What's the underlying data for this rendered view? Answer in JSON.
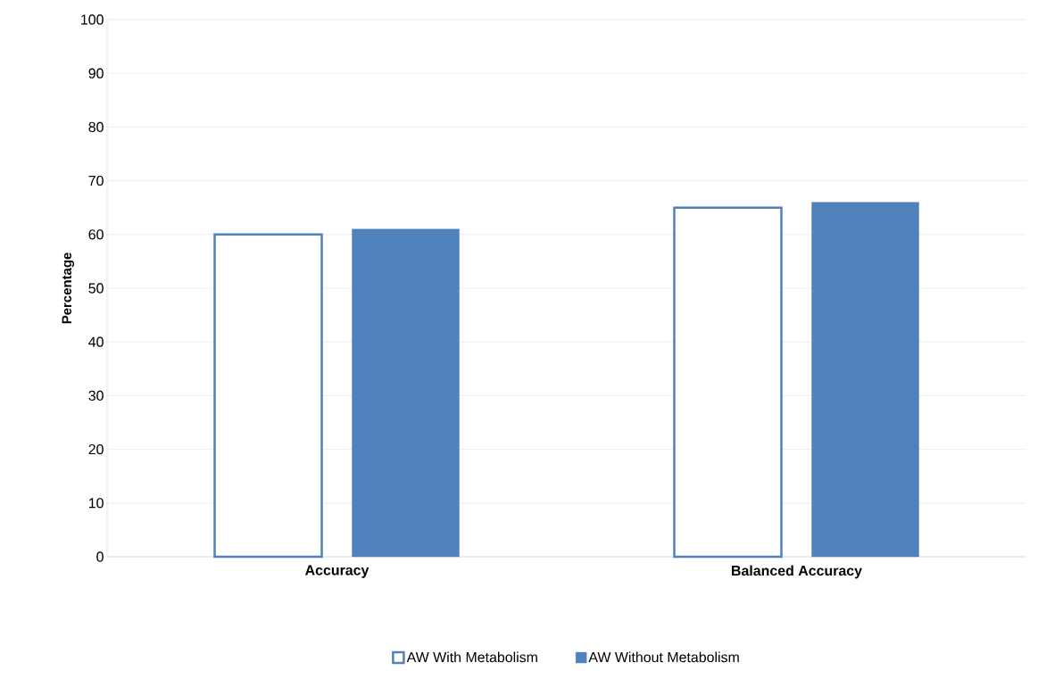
{
  "chart_data": {
    "type": "bar",
    "ylabel": "Percentage",
    "categories": [
      "Accuracy",
      "Balanced Accuracy"
    ],
    "series": [
      {
        "name": "AW With Metabolism",
        "color": "#4f81bd",
        "values": [
          60,
          65
        ]
      },
      {
        "name": "AW Without Metabolism",
        "color": "#4f81bd",
        "values": [
          61,
          66
        ]
      }
    ],
    "ylim": [
      0,
      100
    ],
    "yticks": [
      0,
      10,
      20,
      30,
      40,
      50,
      60,
      70,
      80,
      90,
      100
    ],
    "grid": "y",
    "legend": "bottom"
  }
}
